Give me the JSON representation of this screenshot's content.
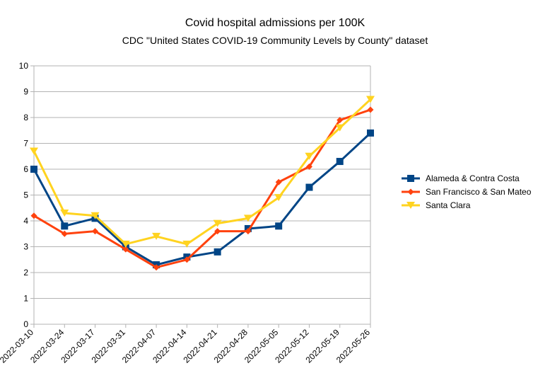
{
  "chart_data": {
    "type": "line",
    "title": "Covid hospital admissions per 100K",
    "subtitle": "CDC \"United States COVID-19 Community Levels by County\" dataset",
    "xlabel": "",
    "ylabel": "",
    "ylim": [
      0,
      10
    ],
    "yticks": [
      "0",
      "1",
      "2",
      "3",
      "4",
      "5",
      "6",
      "7",
      "8",
      "9",
      "10"
    ],
    "grid": "horizontal",
    "legend_position": "right",
    "categories": [
      "2022-03-10",
      "2022-03-24",
      "2022-03-17",
      "2022-03-31",
      "2022-04-07",
      "2022-04-14",
      "2022-04-21",
      "2022-04-28",
      "2022-05-05",
      "2022-05-12",
      "2022-05-19",
      "2022-05-26"
    ],
    "series": [
      {
        "name": "Alameda & Contra Costa",
        "color": "#004586",
        "marker": "square",
        "values": [
          6.0,
          3.8,
          4.1,
          3.0,
          2.3,
          2.6,
          2.8,
          3.7,
          3.8,
          5.3,
          6.3,
          7.4
        ]
      },
      {
        "name": "San Francisco & San Mateo",
        "color": "#ff420e",
        "marker": "diamond",
        "values": [
          4.2,
          3.5,
          3.6,
          2.9,
          2.2,
          2.5,
          3.6,
          3.6,
          5.5,
          6.1,
          7.9,
          8.3
        ]
      },
      {
        "name": "Santa Clara",
        "color": "#ffd320",
        "marker": "triangle-down",
        "values": [
          6.7,
          4.3,
          4.2,
          3.1,
          3.4,
          3.1,
          3.9,
          4.1,
          4.9,
          6.5,
          7.6,
          8.7
        ]
      }
    ]
  }
}
